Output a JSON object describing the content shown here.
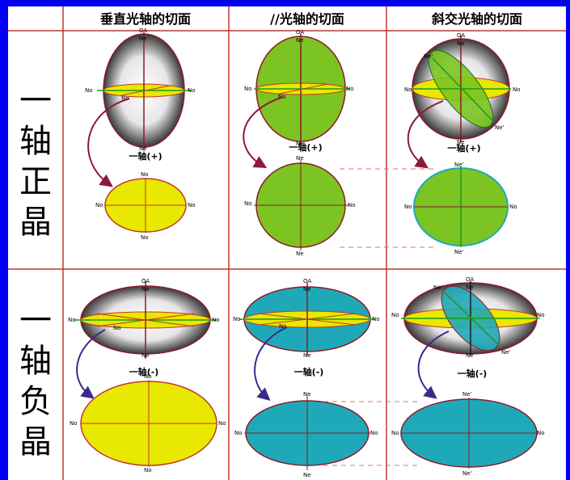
{
  "headers": {
    "col1": "垂直光轴的切面",
    "col2": "//光轴的切面",
    "col3": "斜交光轴的切面"
  },
  "rows": {
    "positive": [
      "一",
      "轴",
      "正",
      "晶"
    ],
    "negative": [
      "一",
      "轴",
      "负",
      "晶"
    ]
  },
  "labels": {
    "optic_axis": "OA",
    "no": "No",
    "ne": "Ne",
    "ne_prime": "Ne'",
    "positive_caption": "一轴(+)",
    "negative_caption": "一轴(-)"
  },
  "colors": {
    "background": "#0000ee",
    "panel": "#ffffff",
    "grid_line": "#c0392b",
    "yellow_fill": "#e8e800",
    "green_fill": "#7cc421",
    "cyan_fill": "#1fa9b8",
    "outline": "#8b1a2a",
    "axis_green": "#1a9a1a",
    "arrow": "#8b1a3a",
    "arrow_blue": "#3a2a8a"
  }
}
